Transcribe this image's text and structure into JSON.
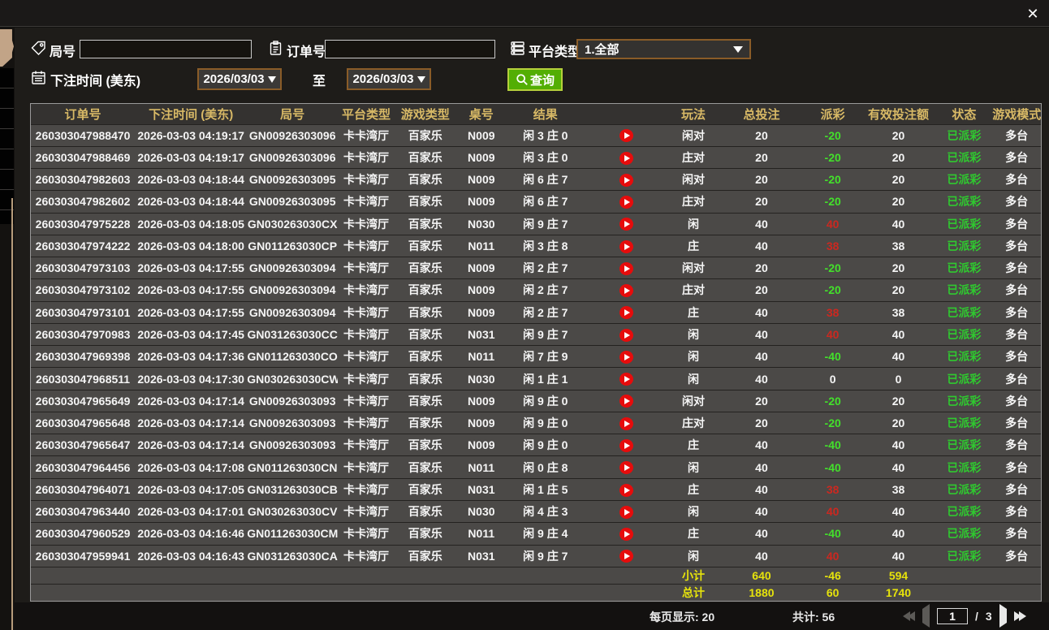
{
  "titlebar": {
    "close_glyph": "✕"
  },
  "filters": {
    "round_label": "局号",
    "order_label": "订单号",
    "platform_label": "平台类型",
    "platform_value": "1.全部",
    "bet_time_label": "下注时间 (美东)",
    "date_from": "2026/03/03",
    "to_label": "至",
    "date_to": "2026/03/03",
    "query_label": "查询",
    "round_value": "",
    "order_value": ""
  },
  "table": {
    "headers": [
      "订单号",
      "下注时间 (美东)",
      "局号",
      "平台类型",
      "游戏类型",
      "桌号",
      "结果",
      "",
      "玩法",
      "总投注",
      "派彩",
      "有效投注额",
      "状态",
      "游戏模式"
    ],
    "rows": [
      {
        "order_no": "260303047988470",
        "bet_time": "2026-03-03 04:19:17",
        "round_no": "GN00926303096",
        "platform": "卡卡湾厅",
        "game_type": "百家乐",
        "table_no": "N009",
        "result": "闲 3 庄 0",
        "play_type": "闲对",
        "total_bet": "20",
        "payout": "-20",
        "payout_class": "neg",
        "valid_bet": "20",
        "status": "已派彩",
        "mode": "多台"
      },
      {
        "order_no": "260303047988469",
        "bet_time": "2026-03-03 04:19:17",
        "round_no": "GN00926303096",
        "platform": "卡卡湾厅",
        "game_type": "百家乐",
        "table_no": "N009",
        "result": "闲 3 庄 0",
        "play_type": "庄对",
        "total_bet": "20",
        "payout": "-20",
        "payout_class": "neg",
        "valid_bet": "20",
        "status": "已派彩",
        "mode": "多台"
      },
      {
        "order_no": "260303047982603",
        "bet_time": "2026-03-03 04:18:44",
        "round_no": "GN00926303095",
        "platform": "卡卡湾厅",
        "game_type": "百家乐",
        "table_no": "N009",
        "result": "闲 6 庄 7",
        "play_type": "闲对",
        "total_bet": "20",
        "payout": "-20",
        "payout_class": "neg",
        "valid_bet": "20",
        "status": "已派彩",
        "mode": "多台"
      },
      {
        "order_no": "260303047982602",
        "bet_time": "2026-03-03 04:18:44",
        "round_no": "GN00926303095",
        "platform": "卡卡湾厅",
        "game_type": "百家乐",
        "table_no": "N009",
        "result": "闲 6 庄 7",
        "play_type": "庄对",
        "total_bet": "20",
        "payout": "-20",
        "payout_class": "neg",
        "valid_bet": "20",
        "status": "已派彩",
        "mode": "多台"
      },
      {
        "order_no": "260303047975228",
        "bet_time": "2026-03-03 04:18:05",
        "round_no": "GN030263030CX",
        "platform": "卡卡湾厅",
        "game_type": "百家乐",
        "table_no": "N030",
        "result": "闲 9 庄 7",
        "play_type": "闲",
        "total_bet": "40",
        "payout": "40",
        "payout_class": "pos",
        "valid_bet": "40",
        "status": "已派彩",
        "mode": "多台"
      },
      {
        "order_no": "260303047974222",
        "bet_time": "2026-03-03 04:18:00",
        "round_no": "GN011263030CP",
        "platform": "卡卡湾厅",
        "game_type": "百家乐",
        "table_no": "N011",
        "result": "闲 3 庄 8",
        "play_type": "庄",
        "total_bet": "40",
        "payout": "38",
        "payout_class": "pos",
        "valid_bet": "38",
        "status": "已派彩",
        "mode": "多台"
      },
      {
        "order_no": "260303047973103",
        "bet_time": "2026-03-03 04:17:55",
        "round_no": "GN00926303094",
        "platform": "卡卡湾厅",
        "game_type": "百家乐",
        "table_no": "N009",
        "result": "闲 2 庄 7",
        "play_type": "闲对",
        "total_bet": "20",
        "payout": "-20",
        "payout_class": "neg",
        "valid_bet": "20",
        "status": "已派彩",
        "mode": "多台"
      },
      {
        "order_no": "260303047973102",
        "bet_time": "2026-03-03 04:17:55",
        "round_no": "GN00926303094",
        "platform": "卡卡湾厅",
        "game_type": "百家乐",
        "table_no": "N009",
        "result": "闲 2 庄 7",
        "play_type": "庄对",
        "total_bet": "20",
        "payout": "-20",
        "payout_class": "neg",
        "valid_bet": "20",
        "status": "已派彩",
        "mode": "多台"
      },
      {
        "order_no": "260303047973101",
        "bet_time": "2026-03-03 04:17:55",
        "round_no": "GN00926303094",
        "platform": "卡卡湾厅",
        "game_type": "百家乐",
        "table_no": "N009",
        "result": "闲 2 庄 7",
        "play_type": "庄",
        "total_bet": "40",
        "payout": "38",
        "payout_class": "pos",
        "valid_bet": "38",
        "status": "已派彩",
        "mode": "多台"
      },
      {
        "order_no": "260303047970983",
        "bet_time": "2026-03-03 04:17:45",
        "round_no": "GN031263030CC",
        "platform": "卡卡湾厅",
        "game_type": "百家乐",
        "table_no": "N031",
        "result": "闲 9 庄 7",
        "play_type": "闲",
        "total_bet": "40",
        "payout": "40",
        "payout_class": "pos",
        "valid_bet": "40",
        "status": "已派彩",
        "mode": "多台"
      },
      {
        "order_no": "260303047969398",
        "bet_time": "2026-03-03 04:17:36",
        "round_no": "GN011263030CO",
        "platform": "卡卡湾厅",
        "game_type": "百家乐",
        "table_no": "N011",
        "result": "闲 7 庄 9",
        "play_type": "闲",
        "total_bet": "40",
        "payout": "-40",
        "payout_class": "neg",
        "valid_bet": "40",
        "status": "已派彩",
        "mode": "多台"
      },
      {
        "order_no": "260303047968511",
        "bet_time": "2026-03-03 04:17:30",
        "round_no": "GN030263030CW",
        "platform": "卡卡湾厅",
        "game_type": "百家乐",
        "table_no": "N030",
        "result": "闲 1 庄 1",
        "play_type": "闲",
        "total_bet": "40",
        "payout": "0",
        "payout_class": "zero",
        "valid_bet": "0",
        "status": "已派彩",
        "mode": "多台"
      },
      {
        "order_no": "260303047965649",
        "bet_time": "2026-03-03 04:17:14",
        "round_no": "GN00926303093",
        "platform": "卡卡湾厅",
        "game_type": "百家乐",
        "table_no": "N009",
        "result": "闲 9 庄 0",
        "play_type": "闲对",
        "total_bet": "20",
        "payout": "-20",
        "payout_class": "neg",
        "valid_bet": "20",
        "status": "已派彩",
        "mode": "多台"
      },
      {
        "order_no": "260303047965648",
        "bet_time": "2026-03-03 04:17:14",
        "round_no": "GN00926303093",
        "platform": "卡卡湾厅",
        "game_type": "百家乐",
        "table_no": "N009",
        "result": "闲 9 庄 0",
        "play_type": "庄对",
        "total_bet": "20",
        "payout": "-20",
        "payout_class": "neg",
        "valid_bet": "20",
        "status": "已派彩",
        "mode": "多台"
      },
      {
        "order_no": "260303047965647",
        "bet_time": "2026-03-03 04:17:14",
        "round_no": "GN00926303093",
        "platform": "卡卡湾厅",
        "game_type": "百家乐",
        "table_no": "N009",
        "result": "闲 9 庄 0",
        "play_type": "庄",
        "total_bet": "40",
        "payout": "-40",
        "payout_class": "neg",
        "valid_bet": "40",
        "status": "已派彩",
        "mode": "多台"
      },
      {
        "order_no": "260303047964456",
        "bet_time": "2026-03-03 04:17:08",
        "round_no": "GN011263030CN",
        "platform": "卡卡湾厅",
        "game_type": "百家乐",
        "table_no": "N011",
        "result": "闲 0 庄 8",
        "play_type": "闲",
        "total_bet": "40",
        "payout": "-40",
        "payout_class": "neg",
        "valid_bet": "40",
        "status": "已派彩",
        "mode": "多台"
      },
      {
        "order_no": "260303047964071",
        "bet_time": "2026-03-03 04:17:05",
        "round_no": "GN031263030CB",
        "platform": "卡卡湾厅",
        "game_type": "百家乐",
        "table_no": "N031",
        "result": "闲 1 庄 5",
        "play_type": "庄",
        "total_bet": "40",
        "payout": "38",
        "payout_class": "pos",
        "valid_bet": "38",
        "status": "已派彩",
        "mode": "多台"
      },
      {
        "order_no": "260303047963440",
        "bet_time": "2026-03-03 04:17:01",
        "round_no": "GN030263030CV",
        "platform": "卡卡湾厅",
        "game_type": "百家乐",
        "table_no": "N030",
        "result": "闲 4 庄 3",
        "play_type": "闲",
        "total_bet": "40",
        "payout": "40",
        "payout_class": "pos",
        "valid_bet": "40",
        "status": "已派彩",
        "mode": "多台"
      },
      {
        "order_no": "260303047960529",
        "bet_time": "2026-03-03 04:16:46",
        "round_no": "GN011263030CM",
        "platform": "卡卡湾厅",
        "game_type": "百家乐",
        "table_no": "N011",
        "result": "闲 9 庄 4",
        "play_type": "庄",
        "total_bet": "40",
        "payout": "-40",
        "payout_class": "neg",
        "valid_bet": "40",
        "status": "已派彩",
        "mode": "多台"
      },
      {
        "order_no": "260303047959941",
        "bet_time": "2026-03-03 04:16:43",
        "round_no": "GN031263030CA",
        "platform": "卡卡湾厅",
        "game_type": "百家乐",
        "table_no": "N031",
        "result": "闲 9 庄 7",
        "play_type": "闲",
        "total_bet": "40",
        "payout": "40",
        "payout_class": "pos",
        "valid_bet": "40",
        "status": "已派彩",
        "mode": "多台"
      }
    ],
    "subtotal": {
      "label": "小计",
      "total_bet": "640",
      "payout": "-46",
      "valid_bet": "594"
    },
    "total": {
      "label": "总计",
      "total_bet": "1880",
      "payout": "60",
      "valid_bet": "1740"
    }
  },
  "pagination": {
    "per_page_label": "每页显示: 20",
    "total_label": "共计: 56",
    "current_page": "1",
    "separator": "/",
    "total_pages": "3"
  },
  "colors": {
    "accent_gold": "#d8b966",
    "win_red": "#cc2820",
    "loss_green": "#43e02b",
    "status_green": "#2fc92f",
    "footer_yellow": "#e6e30b",
    "query_green": "#53ae04",
    "border_brown": "#8a5c28",
    "tan": "#c2a487"
  }
}
